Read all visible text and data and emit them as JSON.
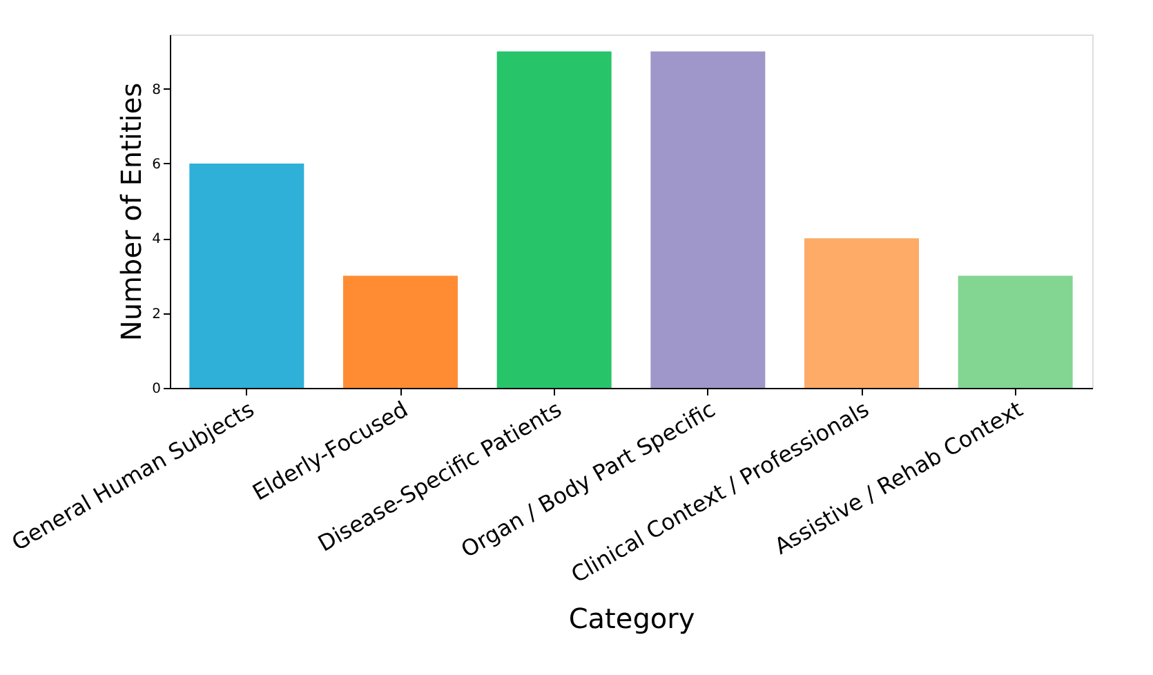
{
  "chart_data": {
    "type": "bar",
    "xlabel": "Category",
    "ylabel": "Number of Entities",
    "categories": [
      "General Human Subjects",
      "Elderly-Focused",
      "Disease-Specific Patients",
      "Organ / Body Part Specific",
      "Clinical Context / Professionals",
      "Assistive / Rehab Context"
    ],
    "values": [
      6,
      3,
      9,
      9,
      4,
      3
    ],
    "colors": [
      "#2eb0d8",
      "#ff8c33",
      "#27c46a",
      "#9f97c9",
      "#fdab67",
      "#82d692"
    ],
    "ylim": [
      0,
      9.45
    ],
    "yticks": [
      0,
      2,
      4,
      6,
      8
    ],
    "grid": false,
    "legend": false
  }
}
